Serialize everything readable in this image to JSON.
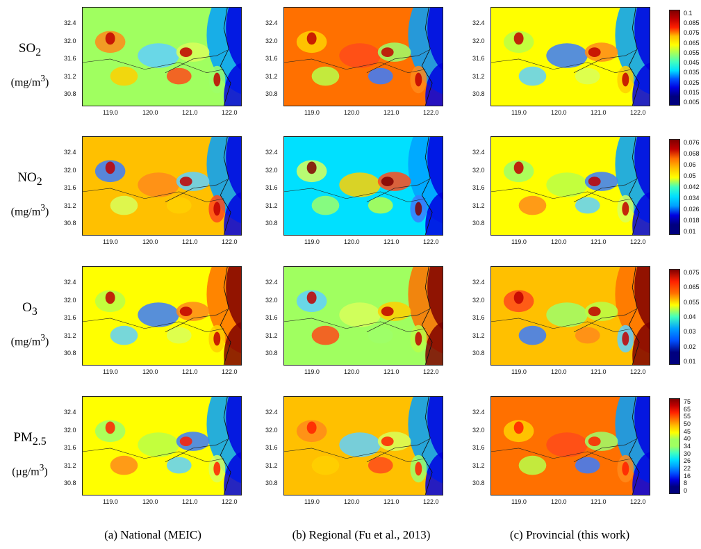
{
  "rows": [
    {
      "species_main": "SO",
      "species_sub": "2",
      "unit_main": "(mg/m",
      "unit_sup": "3",
      "unit_end": ")",
      "cbar_labels": [
        "0.1",
        "0.085",
        "0.075",
        "0.065",
        "0.055",
        "0.045",
        "0.035",
        "0.025",
        "0.015",
        "0.005"
      ]
    },
    {
      "species_main": "NO",
      "species_sub": "2",
      "unit_main": "(mg/m",
      "unit_sup": "3",
      "unit_end": ")",
      "cbar_labels": [
        "0.076",
        "0.068",
        "0.06",
        "0.05",
        "0.042",
        "0.034",
        "0.026",
        "0.018",
        "0.01"
      ]
    },
    {
      "species_main": "O",
      "species_sub": "3",
      "unit_main": "(mg/m",
      "unit_sup": "3",
      "unit_end": ")",
      "cbar_labels": [
        "0.075",
        "0.065",
        "0.055",
        "0.04",
        "0.03",
        "0.02",
        "0.01"
      ]
    },
    {
      "species_main": "PM",
      "species_sub": "2.5",
      "unit_main": "(µg/m",
      "unit_sup": "3",
      "unit_end": ")",
      "cbar_labels": [
        "75",
        "65",
        "55",
        "50",
        "45",
        "40",
        "34",
        "30",
        "26",
        "22",
        "16",
        "8",
        "0"
      ]
    }
  ],
  "columns": [
    {
      "title": "(a) National (MEIC)"
    },
    {
      "title": "(b) Regional (Fu et al., 2013)"
    },
    {
      "title": "(c) Provincial (this work)"
    }
  ],
  "lat_ticks": [
    "32.4",
    "32.0",
    "31.6",
    "31.2",
    "30.8"
  ],
  "lon_ticks": [
    "119.0",
    "120.0",
    "121.0",
    "122.0"
  ],
  "colors": {
    "scale": [
      "#00007f",
      "#0000e0",
      "#0050ff",
      "#00a0ff",
      "#00e0ff",
      "#40ffc0",
      "#a0ff60",
      "#ffff00",
      "#ffc000",
      "#ff7000",
      "#ff2000",
      "#c00000",
      "#7f0000"
    ]
  }
}
